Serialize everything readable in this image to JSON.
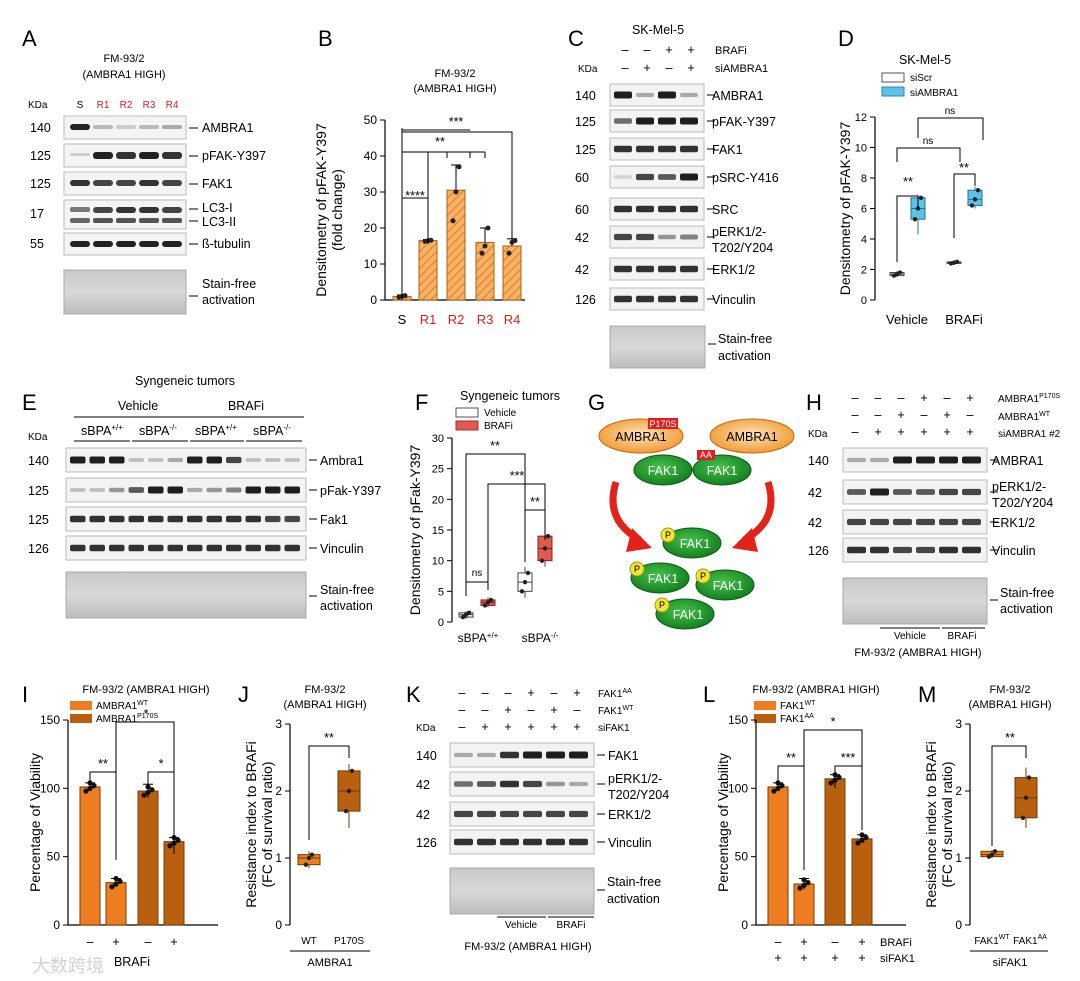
{
  "panel_letters": [
    "A",
    "B",
    "C",
    "D",
    "E",
    "F",
    "G",
    "H",
    "I",
    "J",
    "K",
    "L",
    "M"
  ],
  "A": {
    "title": [
      "FM-93/2",
      "(AMBRA1 HIGH)"
    ],
    "kda": "KDa",
    "lanes": [
      "S",
      "R1",
      "R2",
      "R3",
      "R4"
    ],
    "rows": [
      {
        "mw": "140",
        "name": "AMBRA1"
      },
      {
        "mw": "125",
        "name": "pFAK-Y397"
      },
      {
        "mw": "125",
        "name": "FAK1"
      },
      {
        "mw": "17",
        "name": "LC3-I"
      },
      {
        "mw": "",
        "name": "LC3-II"
      },
      {
        "mw": "55",
        "name": "ß-tubulin"
      }
    ],
    "stain": [
      "Stain-free",
      "activation"
    ]
  },
  "B": {
    "title": [
      "FM-93/2",
      "(AMBRA1 HIGH)"
    ],
    "sig": [
      "****",
      "**",
      "***"
    ]
  },
  "C": {
    "title": "SK-Mel-5",
    "kda": "KDa",
    "cond_labels": [
      "BRAFi",
      "siAMBRA1"
    ],
    "cond_rows": [
      [
        "–",
        "–",
        "+",
        "+"
      ],
      [
        "–",
        "+",
        "–",
        "+"
      ]
    ],
    "rows": [
      {
        "mw": "140",
        "name": [
          "AMBRA1"
        ]
      },
      {
        "mw": "125",
        "name": [
          "pFAK-Y397"
        ]
      },
      {
        "mw": "125",
        "name": [
          "FAK1"
        ]
      },
      {
        "mw": "60",
        "name": [
          "pSRC-Y416"
        ]
      },
      {
        "mw": "60",
        "name": [
          "SRC"
        ]
      },
      {
        "mw": "42",
        "name": [
          "pERK1/2-",
          "T202/Y204"
        ]
      },
      {
        "mw": "42",
        "name": [
          "ERK1/2"
        ]
      },
      {
        "mw": "126",
        "name": [
          "Vinculin"
        ]
      }
    ],
    "stain": [
      "Stain-free",
      "activation"
    ]
  },
  "D": {
    "title": "SK-Mel-5",
    "legend": [
      "siScr",
      "siAMBRA1"
    ],
    "sig": [
      "**",
      "**",
      "ns",
      "ns"
    ]
  },
  "E": {
    "title": "Syngeneic tumors",
    "kda": "KDa",
    "groups": [
      "Vehicle",
      "BRAFi"
    ],
    "genotypes": [
      "sBPA",
      "+/+",
      "sBPA",
      "-/-",
      "sBPA",
      "+/+",
      "sBPA",
      "-/-"
    ],
    "rows": [
      {
        "mw": "140",
        "name": "Ambra1"
      },
      {
        "mw": "125",
        "name": "pFak-Y397"
      },
      {
        "mw": "125",
        "name": "Fak1"
      },
      {
        "mw": "126",
        "name": "Vinculin"
      }
    ],
    "stain": [
      "Stain-free",
      "activation"
    ]
  },
  "F": {
    "title": "Syngeneic tumors",
    "legend": [
      "Vehicle",
      "BRAFi"
    ],
    "sig": [
      "**",
      "***",
      "**",
      "ns"
    ]
  },
  "G": {
    "ambra1": "AMBRA1",
    "fak1": "FAK1",
    "tag_mut": "P170S",
    "tag_aa": "AA",
    "phospho": "P"
  },
  "H": {
    "kda": "KDa",
    "cond_labels": [
      "AMBRA1",
      "P170S",
      "AMBRA1",
      "WT",
      "siAMBRA1 #2"
    ],
    "cond_rows": [
      [
        "–",
        "–",
        "–",
        "–",
        "+",
        "–",
        "–",
        "+"
      ],
      [
        "–",
        "–",
        "+",
        "–",
        "–",
        "+",
        "–",
        "–"
      ],
      [
        "–",
        "+",
        "+",
        "+",
        "+",
        "+",
        "+",
        "+"
      ]
    ],
    "rows": [
      {
        "mw": "140",
        "name": [
          "AMBRA1"
        ]
      },
      {
        "mw": "42",
        "name": [
          "pERK1/2-",
          "T202/Y204"
        ]
      },
      {
        "mw": "42",
        "name": [
          "ERK1/2"
        ]
      },
      {
        "mw": "126",
        "name": [
          "Vinculin"
        ]
      }
    ],
    "stain": [
      "Stain-free",
      "activation"
    ],
    "groups": [
      "Vehicle",
      "BRAFi"
    ],
    "footer": "FM-93/2 (AMBRA1 HIGH)"
  },
  "I": {
    "title": "FM-93/2 (AMBRA1 HIGH)",
    "legend": [
      "AMBRA1",
      "WT",
      "AMBRA1",
      "P170S"
    ],
    "xmarks": [
      "–",
      "+",
      "–",
      "+"
    ],
    "xlabel": "BRAFi",
    "sig": [
      "**",
      "*",
      "*"
    ]
  },
  "J": {
    "title": [
      "FM-93/2",
      "(AMBRA1 HIGH)"
    ],
    "cats": [
      "WT",
      "P170S"
    ],
    "xlabel": "AMBRA1",
    "sig": "**"
  },
  "K": {
    "kda": "KDa",
    "cond_labels": [
      "FAK1",
      "AA",
      "FAK1",
      "WT",
      "siFAK1"
    ],
    "cond_rows": [
      [
        "–",
        "–",
        "–",
        "+",
        "–",
        "+"
      ],
      [
        "–",
        "–",
        "+",
        "–",
        "+",
        "–"
      ],
      [
        "–",
        "+",
        "+",
        "+",
        "+",
        "+"
      ]
    ],
    "rows": [
      {
        "mw": "140",
        "name": [
          "FAK1"
        ]
      },
      {
        "mw": "42",
        "name": [
          "pERK1/2-",
          "T202/Y204"
        ]
      },
      {
        "mw": "42",
        "name": [
          "ERK1/2"
        ]
      },
      {
        "mw": "126",
        "name": [
          "Vinculin"
        ]
      }
    ],
    "stain": [
      "Stain-free",
      "activation"
    ],
    "groups": [
      "Vehicle",
      "BRAFi"
    ],
    "footer": "FM-93/2 (AMBRA1 HIGH)"
  },
  "L": {
    "title": "FM-93/2 (AMBRA1 HIGH)",
    "legend": [
      "FAK1",
      "WT",
      "FAK1",
      "AA"
    ],
    "xrow1": [
      "–",
      "+",
      "–",
      "+"
    ],
    "xrow2": [
      "+",
      "+",
      "+",
      "+"
    ],
    "xlabels": [
      "BRAFi",
      "siFAK1"
    ],
    "sig": [
      "**",
      "*",
      "***"
    ]
  },
  "M": {
    "title": [
      "FM-93/2",
      "(AMBRA1 HIGH)"
    ],
    "cats": [
      "FAK1",
      "WT",
      "FAK1",
      "AA"
    ],
    "xlabel": "siFAK1",
    "sig": "**"
  },
  "watermark": "大数跨境",
  "chart_data": [
    {
      "panel": "B",
      "type": "bar",
      "categories": [
        "S",
        "R1",
        "R2",
        "R3",
        "R4"
      ],
      "values": [
        1,
        16.5,
        30.5,
        16,
        15
      ],
      "errors": [
        0.4,
        0.3,
        7,
        4,
        2
      ],
      "points": [
        [
          0.8,
          1,
          1.2
        ],
        [
          16.3,
          16.5,
          16.6
        ],
        [
          22,
          30,
          37
        ],
        [
          13,
          15,
          20
        ],
        [
          13,
          16,
          16.5
        ]
      ],
      "ylabel": "Densitometry of pFAK-Y397 (fold change)",
      "ylim": [
        0,
        50
      ],
      "yticks": [
        0,
        10,
        20,
        30,
        40,
        50
      ],
      "color": "#f5a04a"
    },
    {
      "panel": "D",
      "type": "box",
      "categories": [
        "Vehicle",
        "BRAFi"
      ],
      "series": [
        {
          "name": "siScr",
          "color": "#ffffff",
          "boxes": [
            [
              1.5,
              1.6,
              1.7,
              1.8,
              1.9
            ],
            [
              2.3,
              2.4,
              2.45,
              2.5,
              2.6
            ]
          ]
        },
        {
          "name": "siAMBRA1",
          "color": "#5bc3ea",
          "boxes": [
            [
              4.3,
              5.3,
              6.0,
              6.7,
              6.9
            ],
            [
              6.0,
              6.2,
              6.6,
              7.2,
              7.4
            ]
          ]
        }
      ],
      "ylabel": "Densitometry of pFAK-Y397",
      "ylim": [
        0,
        12
      ],
      "yticks": [
        0,
        2,
        4,
        6,
        8,
        10,
        12
      ]
    },
    {
      "panel": "F",
      "type": "box",
      "categories": [
        "sBPA+/+",
        "sBPA-/-"
      ],
      "series": [
        {
          "name": "Vehicle",
          "color": "#ffffff",
          "boxes": [
            [
              0.5,
              0.8,
              1.2,
              1.5,
              1.8
            ],
            [
              4,
              5,
              6.5,
              8,
              9
            ]
          ]
        },
        {
          "name": "BRAFi",
          "color": "#e05a50",
          "boxes": [
            [
              2.4,
              2.7,
              3.2,
              3.6,
              4.0
            ],
            [
              9,
              10,
              12,
              14,
              15.5
            ]
          ]
        }
      ],
      "ylabel": "Densitometry of pFak-Y397",
      "ylim": [
        0,
        30
      ],
      "yticks": [
        0,
        5,
        10,
        15,
        20,
        25,
        30
      ]
    },
    {
      "panel": "I",
      "type": "bar",
      "categories": [
        "WT –",
        "WT +",
        "P170S –",
        "P170S +"
      ],
      "values": [
        101,
        31,
        98,
        61
      ],
      "errors": [
        3,
        3,
        5,
        3
      ],
      "colors": [
        "#ee7d22",
        "#ee7d22",
        "#b8600f",
        "#b8600f"
      ],
      "ylabel": "Percentage of Viability",
      "ylim": [
        0,
        150
      ],
      "yticks": [
        0,
        50,
        100,
        150
      ]
    },
    {
      "panel": "J",
      "type": "box",
      "categories": [
        "WT",
        "P170S"
      ],
      "boxes": [
        [
          0.85,
          0.9,
          1.0,
          1.05,
          1.1
        ],
        [
          1.45,
          1.7,
          2.0,
          2.3,
          2.4
        ]
      ],
      "colors": [
        "#ee7d22",
        "#b8600f"
      ],
      "ylabel": "Resistance index to BRAFi (FC of survival ratio)",
      "ylim": [
        0,
        3
      ],
      "yticks": [
        0,
        1,
        2,
        3
      ]
    },
    {
      "panel": "L",
      "type": "bar",
      "categories": [
        "WT –",
        "WT +",
        "AA –",
        "AA +"
      ],
      "values": [
        101,
        30,
        107,
        63
      ],
      "errors": [
        3,
        4,
        3,
        3
      ],
      "colors": [
        "#ee7d22",
        "#ee7d22",
        "#b8600f",
        "#b8600f"
      ],
      "ylabel": "Percentage of Viability",
      "ylim": [
        0,
        150
      ],
      "yticks": [
        0,
        50,
        100,
        150
      ]
    },
    {
      "panel": "M",
      "type": "box",
      "categories": [
        "FAK1 WT",
        "FAK1 AA"
      ],
      "boxes": [
        [
          1.0,
          1.02,
          1.05,
          1.1,
          1.12
        ],
        [
          1.45,
          1.6,
          1.9,
          2.2,
          2.35
        ]
      ],
      "colors": [
        "#ee7d22",
        "#b8600f"
      ],
      "ylabel": "Resistance index to BRAFi (FC of survival ratio)",
      "ylim": [
        0,
        3
      ],
      "yticks": [
        0,
        1,
        2,
        3
      ]
    }
  ]
}
